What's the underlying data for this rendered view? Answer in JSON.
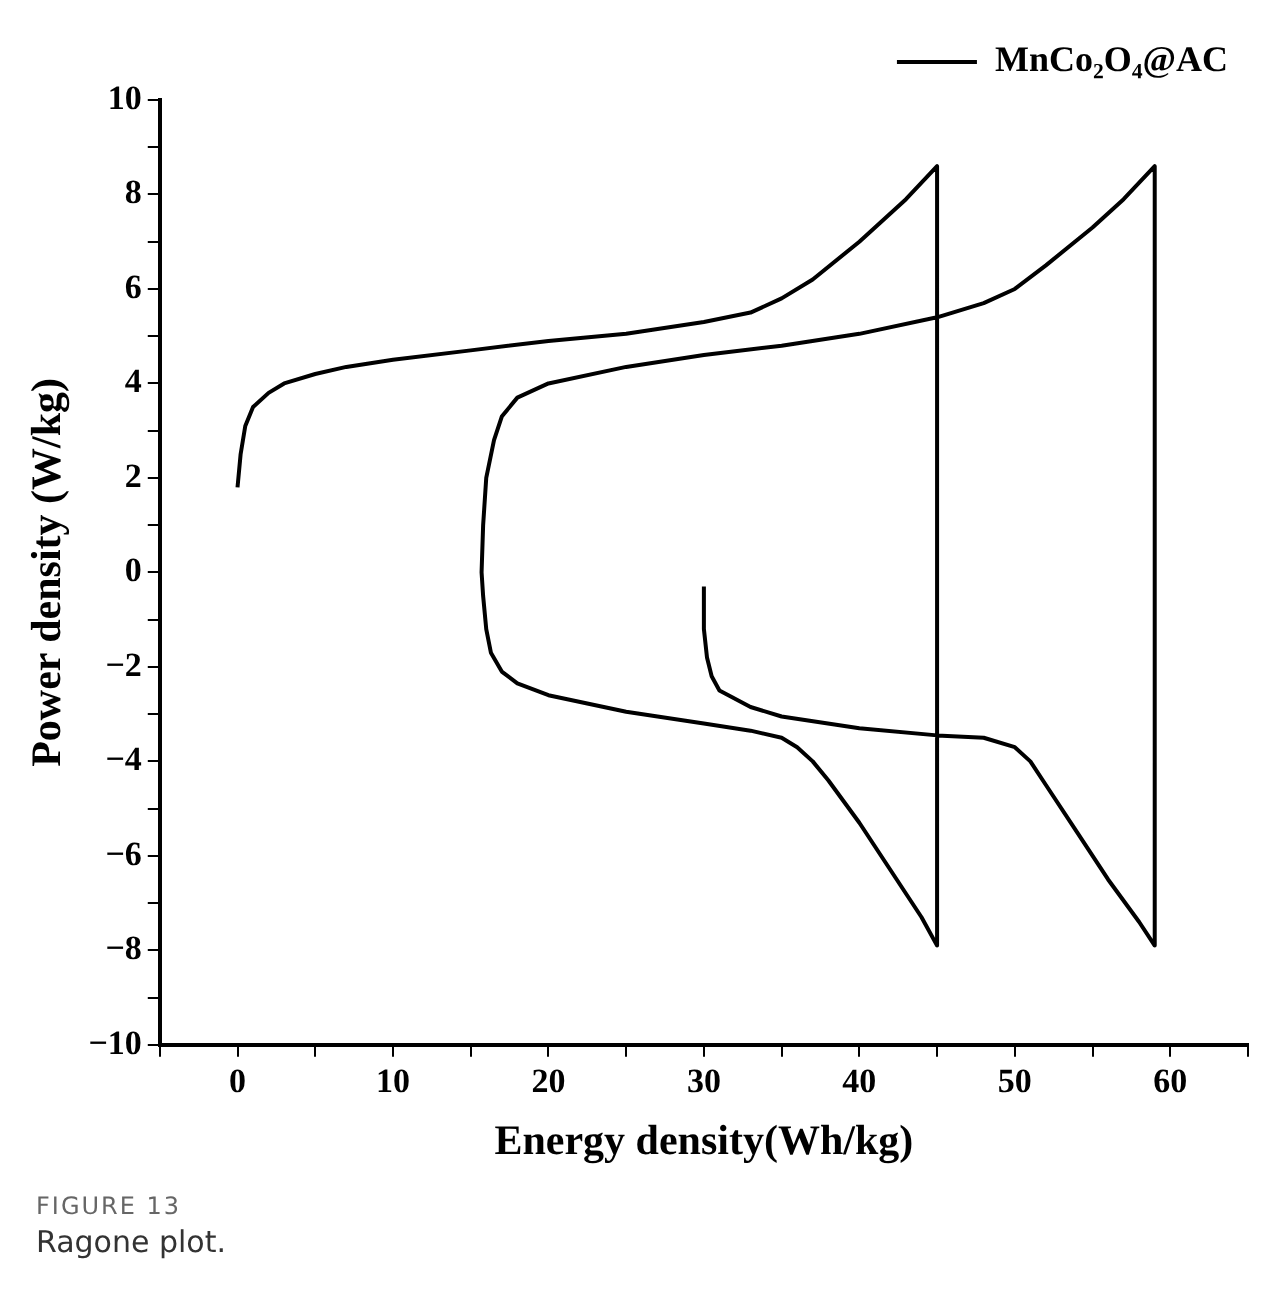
{
  "chart_data": {
    "type": "line",
    "xlabel": "Energy density(Wh/kg)",
    "ylabel": "Power density (W/kg)",
    "xlim": [
      -5,
      65
    ],
    "ylim": [
      -10,
      10
    ],
    "xticks": [
      {
        "value": -5,
        "label": null
      },
      0,
      {
        "value": 5,
        "label": null
      },
      10,
      {
        "value": 15,
        "label": null
      },
      20,
      {
        "value": 25,
        "label": null
      },
      30,
      {
        "value": 35,
        "label": null
      },
      40,
      {
        "value": 45,
        "label": null
      },
      50,
      {
        "value": 55,
        "label": null
      },
      60,
      {
        "value": 65,
        "label": null
      }
    ],
    "yticks": [
      -10,
      {
        "value": -9,
        "label": null
      },
      -8,
      {
        "value": -7,
        "label": null
      },
      -6,
      {
        "value": -5,
        "label": null
      },
      -4,
      {
        "value": -3,
        "label": null
      },
      -2,
      {
        "value": -1,
        "label": null
      },
      0,
      {
        "value": 1,
        "label": null
      },
      2,
      {
        "value": 3,
        "label": null
      },
      4,
      {
        "value": 5,
        "label": null
      },
      6,
      {
        "value": 7,
        "label": null
      },
      8,
      {
        "value": 9,
        "label": null
      },
      10
    ],
    "grid": false,
    "legend": "top right",
    "marker": "none",
    "line_style": "solid",
    "series": [
      {
        "name": "MnCo₂O₄@AC",
        "color": "#000000",
        "x": [
          0,
          0.2,
          0.5,
          1,
          2,
          3,
          5,
          7,
          10,
          15,
          20,
          25,
          30,
          33,
          35,
          37,
          40,
          43,
          45,
          45,
          44,
          42,
          40,
          38,
          37,
          36,
          35,
          33,
          30,
          25,
          20,
          18,
          17,
          16.3,
          16,
          15.8,
          15.7,
          15.8,
          16,
          16.5,
          17,
          18,
          20,
          25,
          30,
          35,
          40,
          45,
          48,
          50,
          52,
          55,
          57,
          59,
          59,
          58,
          56,
          54,
          52,
          51,
          50,
          48,
          45,
          40,
          35,
          33,
          31,
          30.5,
          30.2,
          30,
          30
        ],
        "values": [
          1.8,
          2.5,
          3.1,
          3.5,
          3.8,
          4.0,
          4.2,
          4.35,
          4.5,
          4.7,
          4.9,
          5.05,
          5.3,
          5.5,
          5.8,
          6.2,
          7.0,
          7.9,
          8.6,
          -7.9,
          -7.3,
          -6.3,
          -5.3,
          -4.4,
          -4.0,
          -3.7,
          -3.5,
          -3.35,
          -3.2,
          -2.95,
          -2.6,
          -2.35,
          -2.1,
          -1.7,
          -1.2,
          -0.5,
          0,
          1.0,
          2.0,
          2.8,
          3.3,
          3.7,
          4.0,
          4.35,
          4.6,
          4.8,
          5.05,
          5.4,
          5.7,
          6.0,
          6.5,
          7.3,
          7.9,
          8.6,
          -7.9,
          -7.4,
          -6.5,
          -5.5,
          -4.5,
          -4.0,
          -3.7,
          -3.5,
          -3.45,
          -3.3,
          -3.05,
          -2.85,
          -2.5,
          -2.2,
          -1.8,
          -1.2,
          -0.3
        ]
      }
    ],
    "annotations": [
      "FIGURE 13",
      "Ragone plot."
    ]
  }
}
